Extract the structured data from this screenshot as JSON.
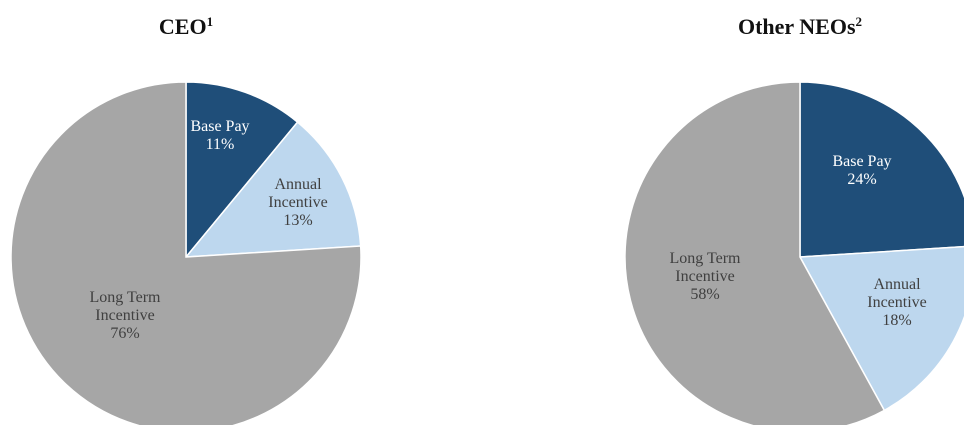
{
  "chart_data": [
    {
      "type": "pie",
      "title": "CEO",
      "title_superscript": "1",
      "slices": [
        {
          "label_lines": [
            "Base Pay"
          ],
          "value": 11,
          "value_text": "11%",
          "color": "#1f4e79",
          "text_color": "#ffffff"
        },
        {
          "label_lines": [
            "Annual",
            "Incentive"
          ],
          "value": 13,
          "value_text": "13%",
          "color": "#bdd7ee",
          "text_color": "#404040"
        },
        {
          "label_lines": [
            "Long Term",
            "Incentive"
          ],
          "value": 76,
          "value_text": "76%",
          "color": "#a6a6a6",
          "text_color": "#404040"
        }
      ]
    },
    {
      "type": "pie",
      "title": "Other NEOs",
      "title_superscript": "2",
      "slices": [
        {
          "label_lines": [
            "Base Pay"
          ],
          "value": 24,
          "value_text": "24%",
          "color": "#1f4e79",
          "text_color": "#ffffff"
        },
        {
          "label_lines": [
            "Annual",
            "Incentive"
          ],
          "value": 18,
          "value_text": "18%",
          "color": "#bdd7ee",
          "text_color": "#404040"
        },
        {
          "label_lines": [
            "Long Term",
            "Incentive"
          ],
          "value": 58,
          "value_text": "58%",
          "color": "#a6a6a6",
          "text_color": "#404040"
        }
      ]
    }
  ]
}
